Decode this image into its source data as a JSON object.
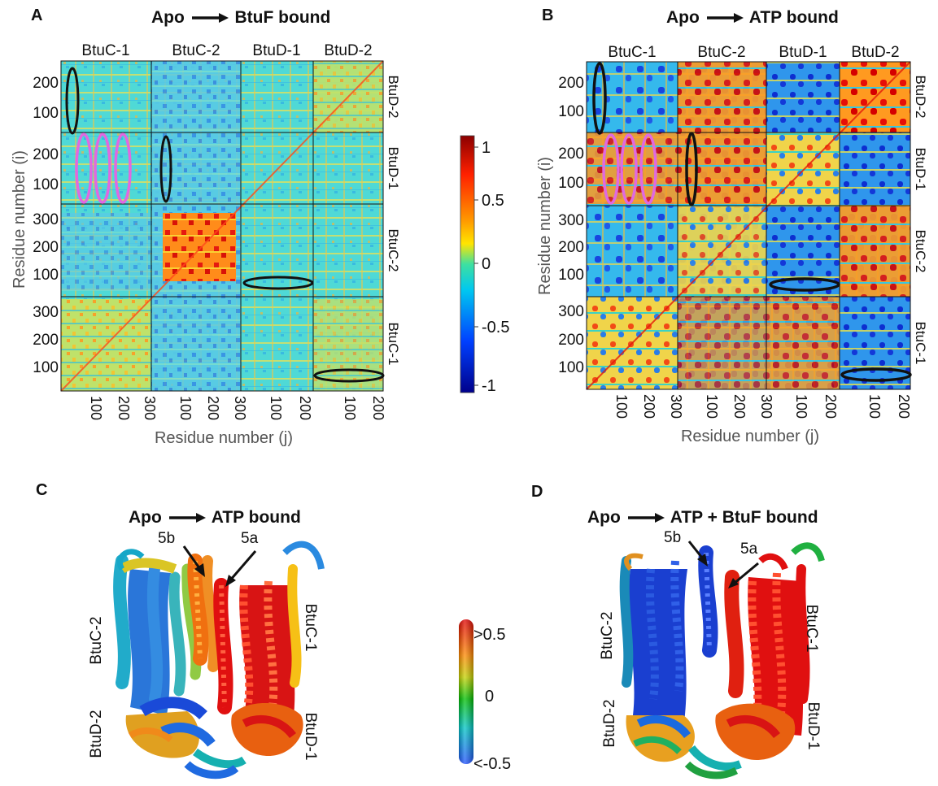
{
  "panels": {
    "A": {
      "letter": "A",
      "title_from": "Apo",
      "title_to": "BtuF bound"
    },
    "B": {
      "letter": "B",
      "title_from": "Apo",
      "title_to": "ATP bound"
    },
    "C": {
      "letter": "C",
      "title_from": "Apo",
      "title_to": "ATP bound"
    },
    "D": {
      "letter": "D",
      "title_from": "Apo",
      "title_to": "ATP + BtuF bound"
    }
  },
  "matrix": {
    "col_blocks": [
      "BtuC-1",
      "BtuC-2",
      "BtuD-1",
      "BtuD-2"
    ],
    "row_blocks_top_to_bottom": [
      "BtuD-2",
      "BtuD-1",
      "BtuC-2",
      "BtuC-1"
    ],
    "ylabel": "Residue number (i)",
    "xlabel": "Residue number (j)",
    "btuc_x_ticks": [
      "100",
      "200",
      "300"
    ],
    "btud_x_ticks": [
      "100",
      "200"
    ],
    "btud_y_ticks": [
      "200",
      "100"
    ],
    "btuc_y_ticks": [
      "300",
      "200",
      "100"
    ]
  },
  "colorbar_matrix": {
    "ticks": [
      "1",
      "0.5",
      "0",
      "-0.5",
      "-1"
    ],
    "colors": [
      "#8b0000",
      "#ff2000",
      "#ffd700",
      "#00e5b0",
      "#00bfff",
      "#0040ff",
      "#00008b"
    ]
  },
  "colorbar_structure": {
    "ticks": [
      ">0.5",
      "0",
      "<-0.5"
    ],
    "colors": [
      "#e00000",
      "#ff8a00",
      "#c6d200",
      "#00c000",
      "#00c6c6",
      "#2050ff"
    ]
  },
  "structure": {
    "labels": {
      "btuc2": "BtuC-2",
      "btuc1": "BtuC-1",
      "btud2": "BtuD-2",
      "btud1": "BtuD-1",
      "h5a": "5a",
      "h5b": "5b"
    }
  }
}
